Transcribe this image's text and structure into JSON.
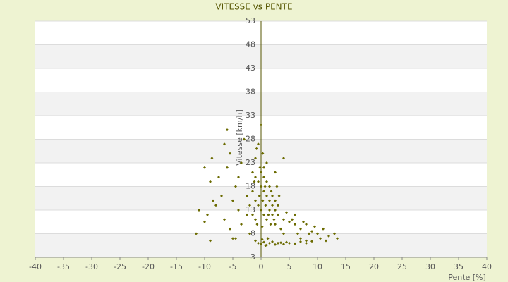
{
  "chart_data": {
    "type": "scatter",
    "title": "VITESSE vs PENTE",
    "x_label": "Pente [%]",
    "y_label": "Vitesse [km/h]",
    "xlim": [
      -40,
      40
    ],
    "xticks": [
      -40,
      -35,
      -30,
      -25,
      -20,
      -15,
      -10,
      -5,
      0,
      5,
      10,
      15,
      20,
      25,
      30,
      35,
      40
    ],
    "ylim": [
      3,
      53
    ],
    "yticks": [
      3,
      8,
      13,
      18,
      23,
      28,
      33,
      38,
      43,
      48,
      53
    ],
    "grid": true,
    "color": "#6b6b00",
    "x": [
      -9.5,
      -10,
      -11,
      -8.5,
      -9,
      -10,
      -8.7,
      -6.5,
      -6,
      -7,
      -6.5,
      -5.5,
      -5,
      -9,
      -11.5,
      -7.5,
      -8,
      -6,
      -5.5,
      -4.5,
      -4,
      -3.5,
      -4.5,
      -3,
      -3.5,
      -2.5,
      -2,
      -2.5,
      -4,
      -5,
      0,
      -0.5,
      0.3,
      -1,
      1,
      0.5,
      4,
      -1.5,
      2.5,
      -0.8,
      -1,
      -0.5,
      0,
      0.5,
      1,
      1.5,
      2,
      -1.5,
      -1,
      -0.5,
      0,
      0.5,
      1,
      1.5,
      2,
      2.5,
      3,
      -2,
      -1.5,
      -1,
      0,
      0.5,
      1,
      1.5,
      2,
      2.5,
      -0.3,
      0.3,
      0.8,
      1.3,
      -0.7,
      0.2,
      1.7,
      2.3,
      -1.2,
      0.7,
      1.8,
      -0.2,
      2.8,
      3.2,
      3,
      4,
      5,
      6,
      7,
      8,
      9,
      10,
      11,
      12,
      13,
      13.5,
      11.5,
      10.5,
      9.5,
      8.5,
      7.5,
      6.5,
      5.5,
      4.5,
      3.5,
      2.5,
      6,
      7,
      8,
      4,
      -0.5,
      0,
      0.5,
      1,
      1.5,
      2,
      2.5,
      3,
      3.5,
      4,
      4.5,
      5,
      6,
      7,
      8,
      9,
      -1,
      0.2,
      1.2,
      0.8
    ],
    "values": [
      12,
      10.5,
      13,
      15,
      19,
      22,
      24,
      27,
      30,
      16,
      11,
      9,
      7,
      6.5,
      8,
      20,
      14,
      22,
      25,
      18,
      13,
      10,
      7,
      28,
      23,
      16,
      8,
      12,
      20,
      15,
      31,
      27,
      25,
      24,
      23,
      22,
      24,
      21,
      21,
      26,
      20,
      19,
      18,
      17,
      16,
      15,
      14,
      17,
      15,
      14,
      13,
      12,
      11,
      13,
      16,
      15,
      14,
      14,
      12,
      11,
      21,
      20,
      19,
      18,
      12,
      13,
      16,
      15,
      14,
      12,
      10,
      9.5,
      10,
      11,
      19,
      18,
      17,
      22,
      18,
      16,
      12,
      11,
      10.5,
      10,
      9,
      10,
      8.5,
      8,
      9,
      7.5,
      8,
      7,
      6.5,
      7,
      9.5,
      8,
      10.5,
      8,
      11,
      12.5,
      9,
      10,
      12,
      7,
      6.5,
      8,
      6,
      5.8,
      6.2,
      5.6,
      6,
      6.3,
      5.7,
      6,
      6.1,
      5.8,
      6.2,
      6,
      5.9,
      6.3,
      6,
      6.4,
      6.5,
      6.8,
      7,
      5.5
    ]
  }
}
